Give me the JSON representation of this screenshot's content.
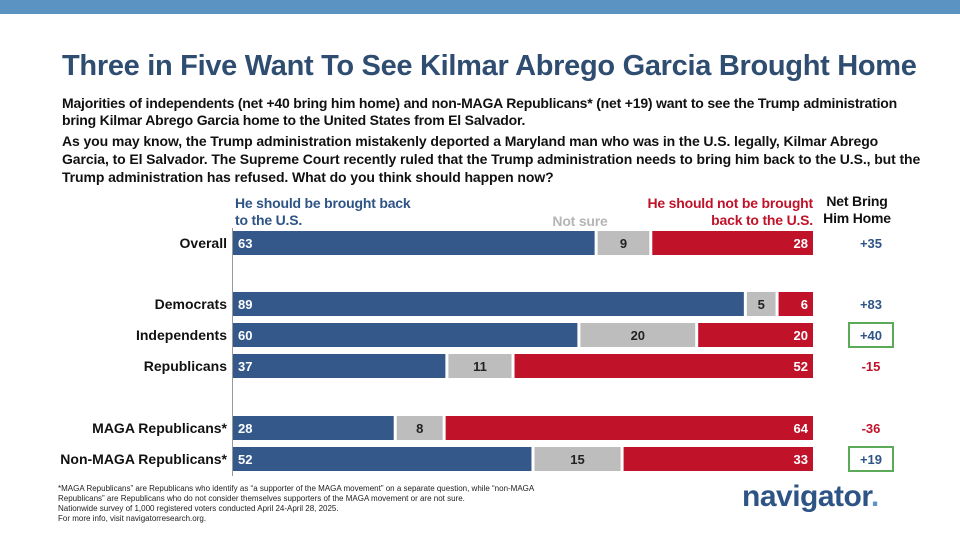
{
  "title": "Three in Five Want To See Kilmar Abrego Garcia Brought Home",
  "subtitle": "Majorities of independents (net +40 bring him home) and non-MAGA Republicans* (net +19) want to see the Trump administration bring Kilmar Abrego Garcia home to the United States from El Salvador.",
  "question": "As you may know, the Trump administration mistakenly deported a Maryland man who was in the U.S. legally, Kilmar Abrego Garcia, to El Salvador. The Supreme Court recently ruled that the Trump administration needs to bring him back to the U.S., but the Trump administration has refused. What do you think should happen now?",
  "legend": {
    "yes": "He should be brought back to the U.S.",
    "unsure": "Not sure",
    "no": "He should not be brought back to the U.S.",
    "net": "Net Bring Him Home"
  },
  "colors": {
    "yes": "#34588a",
    "unsure": "#bdbdbd",
    "no": "#c0132a",
    "net_positive": "#2e5486",
    "net_negative": "#c0132a",
    "highlight_box": "#5aaa5a",
    "title": "#2e4d70"
  },
  "chart_data": {
    "type": "bar",
    "orientation": "horizontal",
    "stacked": true,
    "xlim": [
      0,
      100
    ],
    "categories": [
      "Overall",
      "Democrats",
      "Independents",
      "Republicans",
      "MAGA Republicans*",
      "Non-MAGA Republicans*"
    ],
    "series": [
      {
        "name": "He should be brought back to the U.S.",
        "values": [
          63,
          89,
          60,
          37,
          28,
          52
        ]
      },
      {
        "name": "Not sure",
        "values": [
          9,
          5,
          20,
          11,
          8,
          15
        ]
      },
      {
        "name": "He should not be brought back to the U.S.",
        "values": [
          28,
          6,
          20,
          52,
          64,
          33
        ]
      }
    ],
    "net_label": "Net Bring Him Home",
    "net": [
      "+35",
      "+83",
      "+40",
      "-15",
      "-36",
      "+19"
    ],
    "net_highlighted": [
      false,
      false,
      true,
      false,
      false,
      true
    ]
  },
  "footnote": [
    "*MAGA Republicans” are Republicans who identify as “a supporter of the MAGA movement” on a separate question, while “non-MAGA",
    "Republicans” are Republicans who do not consider themselves supporters of the MAGA movement or are not sure.",
    "Nationwide survey of 1,000 registered voters conducted April 24-April 28, 2025.",
    "For more info, visit navigatorresearch.org."
  ],
  "logo": {
    "text": "navigator",
    "dot": "."
  }
}
